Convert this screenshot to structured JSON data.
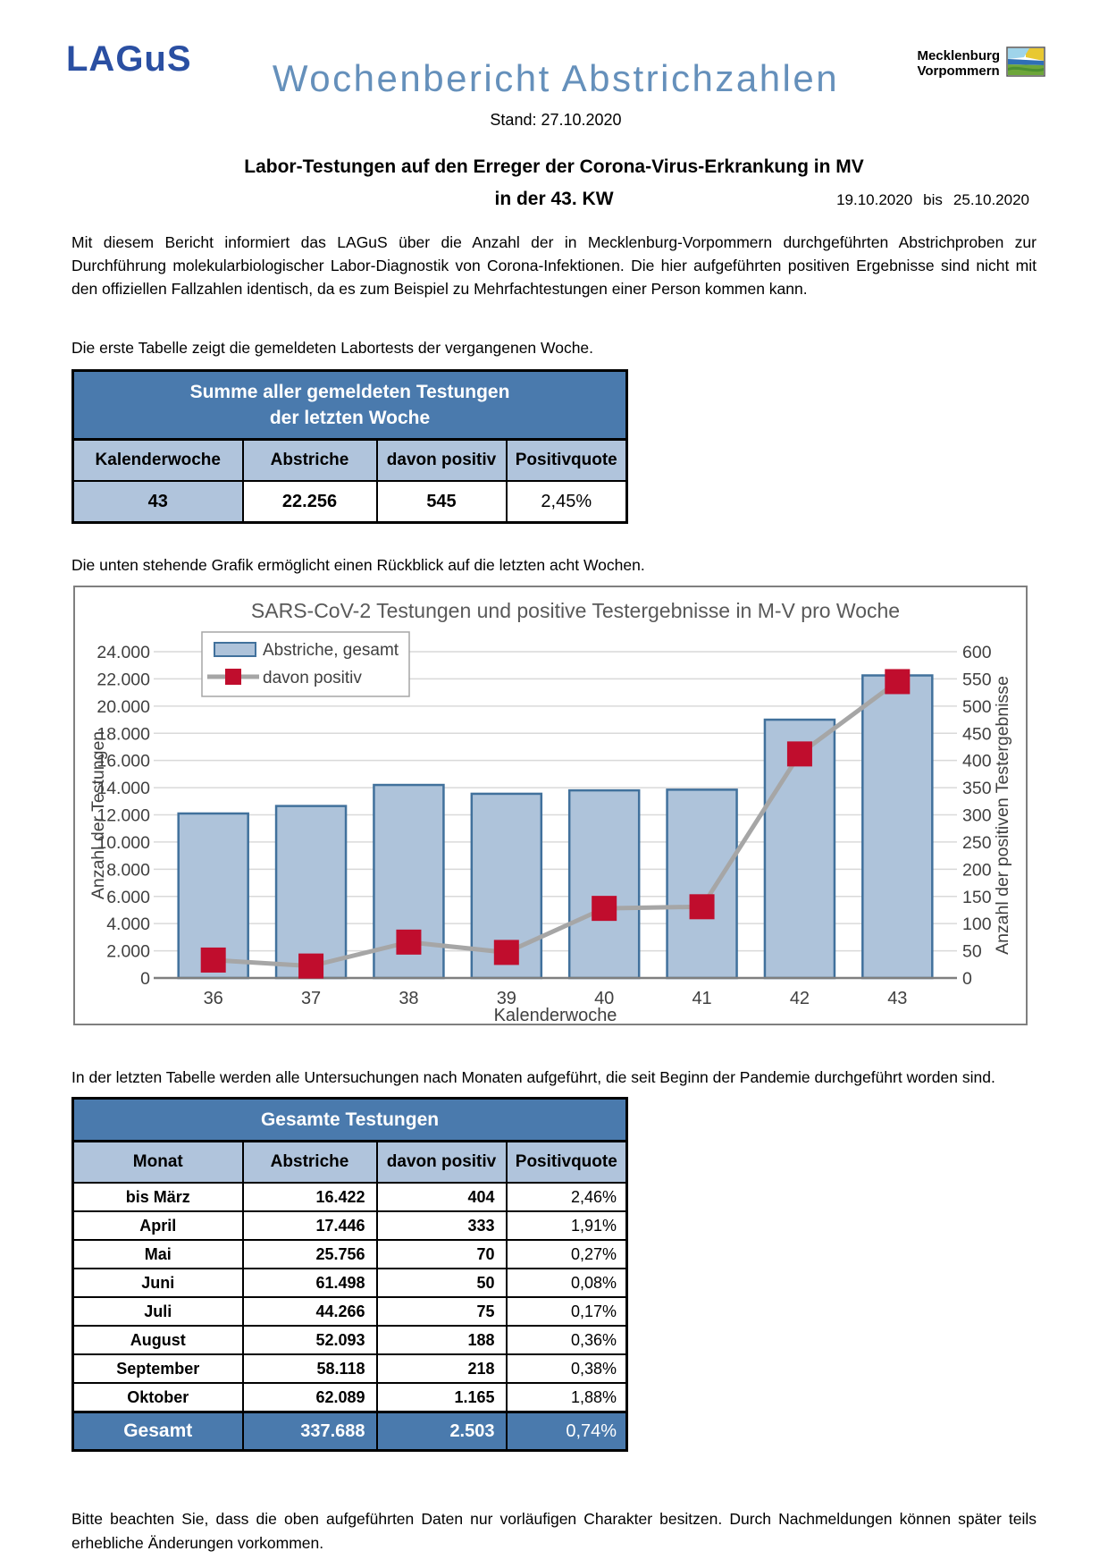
{
  "header": {
    "lagus_logo": "LAGuS",
    "title": "Wochenbericht Abstrichzahlen",
    "stand": "Stand: 27.10.2020",
    "mv_logo_line1": "Mecklenburg",
    "mv_logo_line2": "Vorpommern"
  },
  "heading": {
    "line1": "Labor-Testungen auf den Erreger der Corona-Virus-Erkrankung in MV",
    "line2": "in der 43. KW",
    "date_from": "19.10.2020",
    "date_sep": "bis",
    "date_to": "25.10.2020"
  },
  "intro_paragraph": "Mit diesem Bericht informiert das LAGuS über die Anzahl der in Mecklenburg-Vorpommern durchgeführten Abstrichproben zur Durchführung molekularbiologischer Labor-Diagnostik von Corona-Infektionen. Die hier aufgeführten positiven Ergebnisse sind nicht mit den offiziellen Fallzahlen identisch, da es zum Beispiel zu Mehrfachtestungen einer Person kommen kann.",
  "table1_caption": "Die erste Tabelle zeigt die gemeldeten Labortests der vergangenen Woche.",
  "weekly_table": {
    "title_line1": "Summe aller gemeldeten Testungen",
    "title_line2": "der letzten Woche",
    "headers": [
      "Kalenderwoche",
      "Abstriche",
      "davon positiv",
      "Positivquote"
    ],
    "row": {
      "kalenderwoche": "43",
      "abstriche": "22.256",
      "davon_positiv": "545",
      "positivquote": "2,45%"
    }
  },
  "chart_caption": "Die unten stehende Grafik ermöglicht einen Rückblick auf die letzten acht Wochen.",
  "chart_data": {
    "type": "bar",
    "title": "SARS-CoV-2 Testungen und positive Testergebnisse in M-V pro Woche",
    "categories": [
      "36",
      "37",
      "38",
      "39",
      "40",
      "41",
      "42",
      "43"
    ],
    "series": [
      {
        "name": "Abstriche, gesamt",
        "type": "bar",
        "axis": "left",
        "values": [
          12100,
          12650,
          14200,
          13550,
          13800,
          13850,
          19000,
          22256
        ]
      },
      {
        "name": "davon positiv",
        "type": "line",
        "axis": "right",
        "values": [
          33,
          22,
          66,
          47,
          128,
          131,
          412,
          545
        ]
      }
    ],
    "xlabel": "Kalenderwoche",
    "ylabel_left": "Anzahl der Testungen",
    "ylabel_right": "Anzahl der positiven Testergebnisse",
    "ylim_left": [
      0,
      24000
    ],
    "ytick_step_left": 2000,
    "ylim_right": [
      0,
      600
    ],
    "ytick_step_right": 50,
    "grid": true,
    "legend_position": "top-left",
    "colors": {
      "bar_fill": "#aec3da",
      "bar_border": "#41719c",
      "line": "#a6a6a6",
      "marker": "#c00d2d",
      "title": "#595959",
      "axis_text": "#404040",
      "gridline": "#d9d9d9",
      "axis_line": "#7f7f7f",
      "frame": "#7f7f7f"
    }
  },
  "table2_caption": "In der letzten Tabelle werden alle Untersuchungen nach Monaten aufgeführt, die seit Beginn der Pandemie durchgeführt worden sind.",
  "monthly_table": {
    "title": "Gesamte Testungen",
    "headers": [
      "Monat",
      "Abstriche",
      "davon positiv",
      "Positivquote"
    ],
    "rows": [
      {
        "monat": "bis März",
        "abstriche": "16.422",
        "davon_positiv": "404",
        "positivquote": "2,46%"
      },
      {
        "monat": "April",
        "abstriche": "17.446",
        "davon_positiv": "333",
        "positivquote": "1,91%"
      },
      {
        "monat": "Mai",
        "abstriche": "25.756",
        "davon_positiv": "70",
        "positivquote": "0,27%"
      },
      {
        "monat": "Juni",
        "abstriche": "61.498",
        "davon_positiv": "50",
        "positivquote": "0,08%"
      },
      {
        "monat": "Juli",
        "abstriche": "44.266",
        "davon_positiv": "75",
        "positivquote": "0,17%"
      },
      {
        "monat": "August",
        "abstriche": "52.093",
        "davon_positiv": "188",
        "positivquote": "0,36%"
      },
      {
        "monat": "September",
        "abstriche": "58.118",
        "davon_positiv": "218",
        "positivquote": "0,38%"
      },
      {
        "monat": "Oktober",
        "abstriche": "62.089",
        "davon_positiv": "1.165",
        "positivquote": "1,88%"
      }
    ],
    "total_row": {
      "monat": "Gesamt",
      "abstriche": "337.688",
      "davon_positiv": "2.503",
      "positivquote": "0,74%"
    }
  },
  "footer_note": "Bitte beachten Sie, dass die oben aufgeführten Daten nur vorläufigen Charakter besitzen. Durch Nachmeldungen können später teils erhebliche Änderungen vorkommen.",
  "ui_colors": {
    "table_title_bg": "#4a7aad",
    "table_header_bg": "#b0c4dc",
    "report_title_color": "#6590bb",
    "lagus_blue": "#2a4fa2"
  }
}
